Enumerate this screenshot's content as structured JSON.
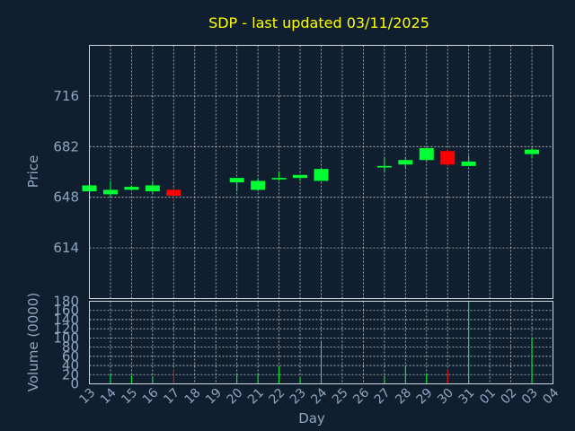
{
  "chart_data": {
    "type": "candlestick",
    "title": "SDP - last updated 03/11/2025",
    "ylabel": "Price",
    "vol_ylabel": "Volume (0000)",
    "xlabel": "Day",
    "x_ticks": [
      "13",
      "14",
      "15",
      "16",
      "17",
      "18",
      "19",
      "20",
      "21",
      "22",
      "23",
      "24",
      "25",
      "26",
      "27",
      "28",
      "29",
      "30",
      "31",
      "01",
      "02",
      "03",
      "04"
    ],
    "price_ticks": [
      614,
      648,
      682,
      716
    ],
    "vol_ticks": [
      0,
      20,
      40,
      60,
      80,
      100,
      120,
      140,
      160,
      180
    ],
    "price_ylim": [
      580,
      750
    ],
    "vol_ylim": [
      0,
      180
    ],
    "colors": {
      "up": "#00ff33",
      "down": "#ff0000",
      "title": "#ffff00",
      "axis_text": "#8fa6c0",
      "background": "#0f1f30"
    },
    "candles": [
      {
        "day": "13",
        "open": 652,
        "high": 656,
        "low": 651,
        "close": 656
      },
      {
        "day": "14",
        "open": 650,
        "high": 659,
        "low": 648,
        "close": 653
      },
      {
        "day": "15",
        "open": 653,
        "high": 656,
        "low": 653,
        "close": 655
      },
      {
        "day": "16",
        "open": 652,
        "high": 659,
        "low": 651,
        "close": 656
      },
      {
        "day": "17",
        "open": 653,
        "high": 655,
        "low": 645,
        "close": 649
      },
      {
        "day": "20",
        "open": 658,
        "high": 661,
        "low": 652,
        "close": 661
      },
      {
        "day": "21",
        "open": 653,
        "high": 661,
        "low": 652,
        "close": 659
      },
      {
        "day": "22",
        "open": 660,
        "high": 665,
        "low": 659,
        "close": 661
      },
      {
        "day": "23",
        "open": 661,
        "high": 663,
        "low": 659,
        "close": 663
      },
      {
        "day": "24",
        "open": 659,
        "high": 667,
        "low": 659,
        "close": 667
      },
      {
        "day": "27",
        "open": 668,
        "high": 675,
        "low": 665,
        "close": 669
      },
      {
        "day": "28",
        "open": 670,
        "high": 674,
        "low": 668,
        "close": 673
      },
      {
        "day": "29",
        "open": 673,
        "high": 681,
        "low": 673,
        "close": 681
      },
      {
        "day": "30",
        "open": 679,
        "high": 680,
        "low": 669,
        "close": 670
      },
      {
        "day": "31",
        "open": 669,
        "high": 676,
        "low": 669,
        "close": 672
      },
      {
        "day": "03",
        "open": 677,
        "high": 681,
        "low": 674,
        "close": 680
      }
    ],
    "volume": [
      {
        "day": "13",
        "value": 2,
        "dir": "up"
      },
      {
        "day": "14",
        "value": 20,
        "dir": "up"
      },
      {
        "day": "15",
        "value": 18,
        "dir": "up"
      },
      {
        "day": "16",
        "value": 16,
        "dir": "up"
      },
      {
        "day": "17",
        "value": 32,
        "dir": "down"
      },
      {
        "day": "20",
        "value": 22,
        "dir": "up"
      },
      {
        "day": "21",
        "value": 24,
        "dir": "up"
      },
      {
        "day": "22",
        "value": 38,
        "dir": "up"
      },
      {
        "day": "23",
        "value": 14,
        "dir": "up"
      },
      {
        "day": "24",
        "value": 92,
        "dir": "up"
      },
      {
        "day": "27",
        "value": 18,
        "dir": "up"
      },
      {
        "day": "28",
        "value": 40,
        "dir": "up"
      },
      {
        "day": "29",
        "value": 22,
        "dir": "up"
      },
      {
        "day": "30",
        "value": 30,
        "dir": "down"
      },
      {
        "day": "31",
        "value": 178,
        "dir": "up"
      },
      {
        "day": "03",
        "value": 102,
        "dir": "up"
      }
    ]
  }
}
